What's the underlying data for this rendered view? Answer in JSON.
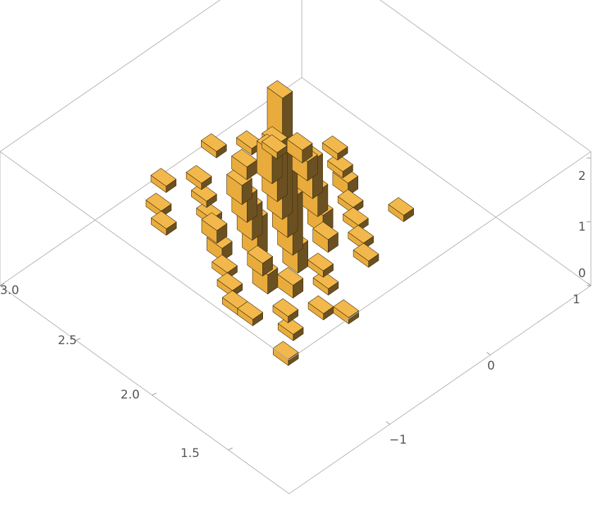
{
  "chart_data": {
    "type": "3d-histogram",
    "x_axis": {
      "label": "",
      "ticks": [
        1.5,
        2.0,
        2.5,
        3.0
      ],
      "tick_labels": [
        "1.5",
        "2.0",
        "2.5",
        "3.0"
      ],
      "range": [
        1.1,
        3.0
      ]
    },
    "y_axis": {
      "label": "",
      "ticks": [
        -1,
        0,
        1
      ],
      "tick_labels": [
        "−1",
        "0",
        "1"
      ],
      "range": [
        -2.0,
        1.0
      ]
    },
    "z_axis": {
      "label": "",
      "ticks": [
        0,
        1,
        2
      ],
      "tick_labels": [
        "0",
        "1",
        "2"
      ],
      "range": [
        0,
        2.1
      ]
    },
    "bin_width": {
      "x": 0.1,
      "y": 0.1
    },
    "bar_color": "#f2b84b",
    "bars": [
      {
        "x": 1.85,
        "y": -0.85,
        "z": 0.1
      },
      {
        "x": 1.85,
        "y": -0.55,
        "z": 0.1
      },
      {
        "x": 1.95,
        "y": -0.75,
        "z": 0.1
      },
      {
        "x": 1.75,
        "y": -0.45,
        "z": 0.1
      },
      {
        "x": 2.05,
        "y": -0.95,
        "z": 0.1
      },
      {
        "x": 1.95,
        "y": -0.35,
        "z": 0.1
      },
      {
        "x": 2.05,
        "y": -0.55,
        "z": 0.2
      },
      {
        "x": 2.05,
        "y": -0.25,
        "z": 0.1
      },
      {
        "x": 2.15,
        "y": -0.65,
        "z": 0.3
      },
      {
        "x": 2.15,
        "y": -0.35,
        "z": 0.4
      },
      {
        "x": 2.15,
        "y": -0.05,
        "z": 0.2
      },
      {
        "x": 2.25,
        "y": -0.55,
        "z": 0.2
      },
      {
        "x": 2.25,
        "y": -0.25,
        "z": 0.9
      },
      {
        "x": 2.25,
        "y": 0.05,
        "z": 0.3
      },
      {
        "x": 2.35,
        "y": -0.45,
        "z": 0.6
      },
      {
        "x": 2.35,
        "y": -0.15,
        "z": 1.2
      },
      {
        "x": 2.35,
        "y": 0.15,
        "z": 0.4
      },
      {
        "x": 2.45,
        "y": -0.35,
        "z": 0.5
      },
      {
        "x": 2.45,
        "y": -0.05,
        "z": 1.9
      },
      {
        "x": 2.45,
        "y": 0.25,
        "z": 0.6
      },
      {
        "x": 2.55,
        "y": -0.25,
        "z": 0.4
      },
      {
        "x": 2.55,
        "y": 0.05,
        "z": 0.9
      },
      {
        "x": 2.55,
        "y": 0.35,
        "z": 0.3
      },
      {
        "x": 2.65,
        "y": -0.15,
        "z": 0.3
      },
      {
        "x": 2.65,
        "y": 0.15,
        "z": 0.5
      },
      {
        "x": 2.75,
        "y": 0.05,
        "z": 0.2
      },
      {
        "x": 2.45,
        "y": -0.65,
        "z": 0.2
      },
      {
        "x": 2.55,
        "y": -0.55,
        "z": 0.2
      },
      {
        "x": 2.65,
        "y": -0.45,
        "z": 0.1
      },
      {
        "x": 2.75,
        "y": -0.35,
        "z": 0.1
      },
      {
        "x": 2.85,
        "y": -0.25,
        "z": 0.1
      },
      {
        "x": 2.35,
        "y": -0.75,
        "z": 0.1
      },
      {
        "x": 2.25,
        "y": -0.85,
        "z": 0.1
      },
      {
        "x": 2.15,
        "y": -0.95,
        "z": 0.1
      },
      {
        "x": 2.65,
        "y": 0.45,
        "z": 0.2
      },
      {
        "x": 2.75,
        "y": 0.35,
        "z": 0.1
      },
      {
        "x": 2.35,
        "y": 0.45,
        "z": 0.2
      },
      {
        "x": 2.25,
        "y": 0.35,
        "z": 0.1
      },
      {
        "x": 2.15,
        "y": 0.25,
        "z": 0.1
      },
      {
        "x": 2.05,
        "y": 0.15,
        "z": 0.1
      },
      {
        "x": 2.85,
        "y": 0.25,
        "z": 0.1
      },
      {
        "x": 2.95,
        "y": -0.45,
        "z": 0.1
      },
      {
        "x": 1.95,
        "y": 0.05,
        "z": 0.1
      },
      {
        "x": 2.55,
        "y": 0.65,
        "z": 0.1
      },
      {
        "x": 2.45,
        "y": 0.55,
        "z": 0.1
      },
      {
        "x": 2.85,
        "y": -0.65,
        "z": 0.1
      },
      {
        "x": 2.75,
        "y": -0.75,
        "z": 0.1
      },
      {
        "x": 1.75,
        "y": -1.05,
        "z": 0.1
      },
      {
        "x": 2.95,
        "y": 0.05,
        "z": 0.1
      },
      {
        "x": 2.05,
        "y": 0.55,
        "z": 0.1
      }
    ]
  }
}
